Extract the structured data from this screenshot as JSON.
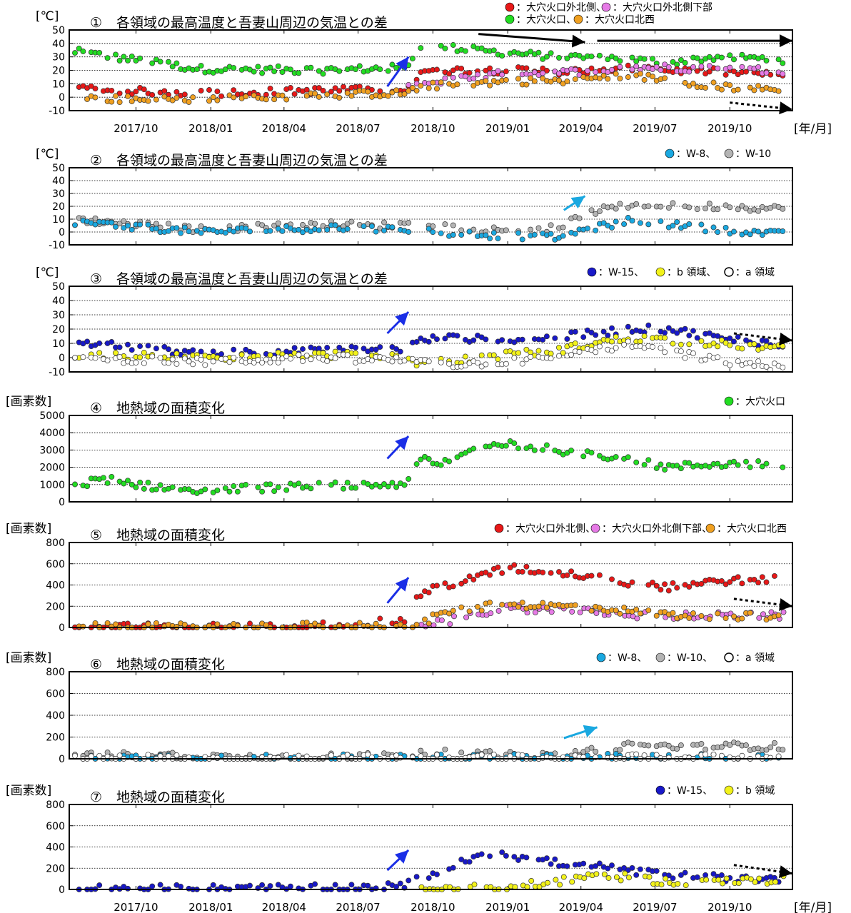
{
  "x_axis": {
    "month_labels": [
      "2017/10",
      "2018/01",
      "2018/04",
      "2018/07",
      "2018/10",
      "2019/01",
      "2019/04",
      "2019/07",
      "2019/10"
    ],
    "unit_label": "[年/月]",
    "range": [
      "2017-07-25",
      "2019-12-31"
    ]
  },
  "colors": {
    "red": "#e81818",
    "magenta": "#e67ae6",
    "green": "#22dd22",
    "orange": "#f0a020",
    "cyan": "#1aa8e0",
    "gray": "#b4b4b4",
    "blue": "#1818c8",
    "yellow": "#f2f21a",
    "white": "#ffffff",
    "arrow_black": "#000000",
    "arrow_blue": "#1a2ee6",
    "arrow_cyan": "#1aa8e0"
  },
  "chart_data": [
    {
      "type": "scatter",
      "panel": "①",
      "title": "各領域の最高温度と吾妻山周辺の気温との差",
      "ylabel": "[℃]",
      "ylim": [
        -10,
        50
      ],
      "yticks": [
        -10,
        0,
        10,
        20,
        30,
        40,
        50
      ],
      "grid": true,
      "legend": [
        {
          "marker": "red",
          "label": "：大穴火口外北側、"
        },
        {
          "marker": "magenta",
          "label": "：大穴火口外北側下部"
        },
        {
          "marker": "green",
          "label": "：大穴火口、"
        },
        {
          "marker": "orange",
          "label": "：大穴火口北西"
        }
      ],
      "series": [
        {
          "color": "green",
          "name": "大穴火口",
          "x": [
            "2017-08-01",
            "2018-01-01",
            "2018-06-01",
            "2018-09-10",
            "2018-10-01",
            "2018-11-01",
            "2019-01-15",
            "2019-03-15",
            "2019-05-01",
            "2019-06-15",
            "2019-08-01",
            "2019-10-01",
            "2019-12-20"
          ],
          "y": [
            34,
            21,
            20,
            22,
            38,
            37,
            33,
            30,
            30,
            28,
            26,
            30,
            28
          ]
        },
        {
          "color": "red",
          "name": "大穴火口外北側",
          "x": [
            "2017-08-01",
            "2018-01-01",
            "2018-06-01",
            "2018-09-10",
            "2018-10-01",
            "2018-11-01",
            "2019-01-15",
            "2019-03-15",
            "2019-05-01",
            "2019-06-15",
            "2019-08-01",
            "2019-10-01",
            "2019-12-20"
          ],
          "y": [
            6,
            3,
            5,
            6,
            18,
            20,
            20,
            19,
            20,
            21,
            20,
            19,
            16
          ]
        },
        {
          "color": "magenta",
          "name": "大穴火口外北側下部",
          "x": [
            "2018-09-10",
            "2018-10-01",
            "2018-11-01",
            "2019-01-15",
            "2019-03-15",
            "2019-05-01",
            "2019-06-15",
            "2019-08-01",
            "2019-10-01",
            "2019-12-20"
          ],
          "y": [
            6,
            10,
            12,
            18,
            18,
            20,
            22,
            22,
            21,
            20
          ]
        },
        {
          "color": "orange",
          "name": "大穴火口北西",
          "x": [
            "2017-08-01",
            "2018-01-01",
            "2018-06-01",
            "2018-09-10",
            "2018-10-01",
            "2018-11-01",
            "2019-01-15",
            "2019-03-15",
            "2019-05-01",
            "2019-06-15",
            "2019-08-01",
            "2019-10-01",
            "2019-12-20"
          ],
          "y": [
            -1,
            -2,
            2,
            3,
            8,
            9,
            12,
            12,
            14,
            16,
            13,
            8,
            5
          ]
        }
      ],
      "arrows": [
        {
          "color": "arrow_blue",
          "from": [
            "2018-08-20",
            8
          ],
          "to": [
            "2018-09-15",
            30
          ]
        },
        {
          "color": "arrow_black",
          "from": [
            "2018-12-10",
            47
          ],
          "to": [
            "2019-04-20",
            41
          ]
        },
        {
          "color": "arrow_black",
          "from": [
            "2019-05-05",
            42
          ],
          "to": [
            "2019-12-31",
            42
          ]
        },
        {
          "color": "arrow_black",
          "dashed": true,
          "from": [
            "2019-10-15",
            -4
          ],
          "to": [
            "2019-12-31",
            -9
          ]
        }
      ]
    },
    {
      "type": "scatter",
      "panel": "②",
      "title": "各領域の最高温度と吾妻山周辺の気温との差",
      "ylabel": "[℃]",
      "ylim": [
        -10,
        50
      ],
      "yticks": [
        -10,
        0,
        10,
        20,
        30,
        40,
        50
      ],
      "grid": true,
      "legend": [
        {
          "marker": "cyan",
          "label": "：W-8、"
        },
        {
          "marker": "gray",
          "label": "：W-10"
        }
      ],
      "series": [
        {
          "color": "gray",
          "name": "W-10",
          "x": [
            "2017-08-01",
            "2018-01-01",
            "2018-06-01",
            "2018-09-10",
            "2018-10-01",
            "2018-11-01",
            "2019-01-15",
            "2019-03-15",
            "2019-05-01",
            "2019-06-15",
            "2019-08-01",
            "2019-10-01",
            "2019-12-20"
          ],
          "y": [
            10,
            2,
            6,
            5,
            8,
            4,
            1,
            3,
            16,
            21,
            20,
            20,
            18
          ]
        },
        {
          "color": "cyan",
          "name": "W-8",
          "x": [
            "2017-08-01",
            "2018-01-01",
            "2018-06-01",
            "2018-09-10",
            "2018-10-01",
            "2018-11-01",
            "2019-01-15",
            "2019-03-15",
            "2019-05-01",
            "2019-06-15",
            "2019-08-01",
            "2019-10-01",
            "2019-12-20"
          ],
          "y": [
            8,
            0,
            3,
            2,
            2,
            -1,
            -3,
            -4,
            3,
            9,
            6,
            2,
            -2
          ]
        }
      ],
      "arrows": [
        {
          "color": "arrow_cyan",
          "from": [
            "2019-03-25",
            17
          ],
          "to": [
            "2019-04-20",
            28
          ]
        }
      ]
    },
    {
      "type": "scatter",
      "panel": "③",
      "title": "各領域の最高温度と吾妻山周辺の気温との差",
      "ylabel": "[℃]",
      "ylim": [
        -10,
        50
      ],
      "yticks": [
        -10,
        0,
        10,
        20,
        30,
        40,
        50
      ],
      "grid": true,
      "legend": [
        {
          "marker": "blue",
          "label": "：W-15、"
        },
        {
          "marker": "yellow",
          "label": "：b 領域、"
        },
        {
          "marker": "white",
          "label": "：a 領域"
        }
      ],
      "series": [
        {
          "color": "blue",
          "name": "W-15",
          "x": [
            "2017-08-01",
            "2018-01-01",
            "2018-06-01",
            "2018-09-10",
            "2018-10-01",
            "2018-11-01",
            "2019-01-15",
            "2019-03-15",
            "2019-05-01",
            "2019-06-15",
            "2019-08-01",
            "2019-10-01",
            "2019-12-20"
          ],
          "y": [
            11,
            3,
            5,
            6,
            12,
            14,
            12,
            14,
            17,
            20,
            20,
            14,
            9
          ]
        },
        {
          "color": "yellow",
          "name": "b 領域",
          "x": [
            "2017-08-01",
            "2018-01-01",
            "2018-06-01",
            "2018-09-10",
            "2018-10-01",
            "2018-11-01",
            "2019-01-15",
            "2019-03-15",
            "2019-05-01",
            "2019-06-15",
            "2019-08-01",
            "2019-10-01",
            "2019-12-20"
          ],
          "y": [
            2,
            0,
            2,
            1,
            -5,
            -3,
            2,
            5,
            10,
            14,
            12,
            10,
            6
          ]
        },
        {
          "color": "white",
          "name": "a 領域",
          "x": [
            "2017-08-01",
            "2018-01-01",
            "2018-06-01",
            "2018-09-10",
            "2018-10-01",
            "2018-11-01",
            "2019-01-15",
            "2019-03-15",
            "2019-05-01",
            "2019-06-15",
            "2019-08-01",
            "2019-10-01",
            "2019-12-20"
          ],
          "y": [
            0,
            -3,
            0,
            -2,
            -4,
            -5,
            -3,
            0,
            5,
            9,
            4,
            -2,
            -7
          ]
        }
      ],
      "arrows": [
        {
          "color": "arrow_blue",
          "from": [
            "2018-08-20",
            17
          ],
          "to": [
            "2018-09-15",
            32
          ]
        },
        {
          "color": "arrow_black",
          "dashed": true,
          "from": [
            "2019-10-20",
            17
          ],
          "to": [
            "2019-12-31",
            12
          ]
        }
      ]
    },
    {
      "type": "scatter",
      "panel": "④",
      "title": "地熱域の面積変化",
      "ylabel": "[画素数]",
      "ylim": [
        0,
        5000
      ],
      "yticks": [
        0,
        1000,
        2000,
        3000,
        4000,
        5000
      ],
      "grid": true,
      "legend": [
        {
          "marker": "green",
          "label": "：大穴火口"
        }
      ],
      "series": [
        {
          "color": "green",
          "name": "大穴火口",
          "x": [
            "2017-08-01",
            "2017-09-10",
            "2017-11-01",
            "2018-01-01",
            "2018-03-15",
            "2018-06-01",
            "2018-08-20",
            "2018-09-15",
            "2018-10-01",
            "2018-11-01",
            "2018-12-10",
            "2019-01-15",
            "2019-03-15",
            "2019-05-01",
            "2019-06-15",
            "2019-08-01",
            "2019-10-01",
            "2019-12-20"
          ],
          "y": [
            1000,
            1300,
            900,
            700,
            800,
            900,
            1000,
            1100,
            2600,
            2200,
            3200,
            3400,
            3000,
            2800,
            2400,
            2000,
            2200,
            2200
          ]
        }
      ],
      "arrows": [
        {
          "color": "arrow_blue",
          "from": [
            "2018-08-20",
            2500
          ],
          "to": [
            "2018-09-15",
            3800
          ]
        }
      ]
    },
    {
      "type": "scatter",
      "panel": "⑤",
      "title": "地熱域の面積変化",
      "ylabel": "[画素数]",
      "ylim": [
        0,
        800
      ],
      "yticks": [
        0,
        200,
        400,
        600,
        800
      ],
      "grid": true,
      "legend": [
        {
          "marker": "red",
          "label": "：大穴火口外北側、"
        },
        {
          "marker": "magenta",
          "label": "：大穴火口外北側下部、"
        },
        {
          "marker": "orange",
          "label": "：大穴火口北西"
        }
      ],
      "series": [
        {
          "color": "red",
          "name": "大穴火口外北側",
          "x": [
            "2017-08-01",
            "2018-01-01",
            "2018-06-01",
            "2018-09-10",
            "2018-10-01",
            "2018-11-01",
            "2019-01-15",
            "2019-03-15",
            "2019-05-01",
            "2019-06-15",
            "2019-08-01",
            "2019-10-01",
            "2019-12-20"
          ],
          "y": [
            5,
            5,
            20,
            60,
            330,
            400,
            560,
            520,
            480,
            420,
            380,
            440,
            450
          ]
        },
        {
          "color": "magenta",
          "name": "大穴火口外北側下部",
          "x": [
            "2018-10-01",
            "2018-11-01",
            "2019-01-15",
            "2019-03-15",
            "2019-05-01",
            "2019-06-15",
            "2019-08-01",
            "2019-10-01",
            "2019-12-20"
          ],
          "y": [
            20,
            60,
            180,
            170,
            150,
            120,
            110,
            110,
            110
          ]
        },
        {
          "color": "orange",
          "name": "大穴火口北西",
          "x": [
            "2017-08-01",
            "2018-01-01",
            "2018-06-01",
            "2018-09-10",
            "2018-10-01",
            "2018-11-01",
            "2019-01-15",
            "2019-03-15",
            "2019-05-01",
            "2019-06-15",
            "2019-08-01",
            "2019-10-01",
            "2019-12-20"
          ],
          "y": [
            5,
            5,
            15,
            20,
            40,
            150,
            220,
            200,
            190,
            150,
            120,
            110,
            100
          ]
        }
      ],
      "arrows": [
        {
          "color": "arrow_blue",
          "from": [
            "2018-08-20",
            230
          ],
          "to": [
            "2018-09-15",
            470
          ]
        },
        {
          "color": "arrow_black",
          "dashed": true,
          "from": [
            "2019-10-20",
            270
          ],
          "to": [
            "2019-12-31",
            200
          ]
        }
      ]
    },
    {
      "type": "scatter",
      "panel": "⑥",
      "title": "地熱域の面積変化",
      "ylabel": "[画素数]",
      "ylim": [
        0,
        800
      ],
      "yticks": [
        0,
        200,
        400,
        600,
        800
      ],
      "grid": true,
      "legend": [
        {
          "marker": "cyan",
          "label": "：W-8、"
        },
        {
          "marker": "gray",
          "label": "：W-10、"
        },
        {
          "marker": "white",
          "label": "：a 領域"
        }
      ],
      "series": [
        {
          "color": "gray",
          "name": "W-10",
          "x": [
            "2017-08-01",
            "2017-11-01",
            "2018-03-15",
            "2018-06-01",
            "2018-09-10",
            "2018-10-01",
            "2018-11-01",
            "2019-01-15",
            "2019-03-15",
            "2019-05-01",
            "2019-06-15",
            "2019-08-01",
            "2019-10-01",
            "2019-12-20"
          ],
          "y": [
            25,
            35,
            15,
            20,
            25,
            65,
            50,
            30,
            20,
            80,
            120,
            110,
            120,
            110
          ]
        },
        {
          "color": "cyan",
          "name": "W-8",
          "x": [
            "2017-08-01",
            "2018-06-01",
            "2019-01-15",
            "2019-06-15",
            "2019-12-20"
          ],
          "y": [
            5,
            5,
            10,
            15,
            10
          ]
        },
        {
          "color": "white",
          "name": "a 領域",
          "x": [
            "2017-08-01",
            "2018-06-01",
            "2019-01-15",
            "2019-06-15",
            "2019-12-20"
          ],
          "y": [
            5,
            5,
            5,
            10,
            8
          ]
        }
      ],
      "arrows": [
        {
          "color": "arrow_cyan",
          "from": [
            "2019-03-25",
            190
          ],
          "to": [
            "2019-05-05",
            290
          ]
        }
      ]
    },
    {
      "type": "scatter",
      "panel": "⑦",
      "title": "地熱域の面積変化",
      "ylabel": "[画素数]",
      "ylim": [
        0,
        800
      ],
      "yticks": [
        0,
        200,
        400,
        600,
        800
      ],
      "grid": true,
      "legend": [
        {
          "marker": "blue",
          "label": "：W-15、"
        },
        {
          "marker": "yellow",
          "label": "：b 領域"
        }
      ],
      "series": [
        {
          "color": "blue",
          "name": "W-15",
          "x": [
            "2017-08-01",
            "2018-01-01",
            "2018-06-01",
            "2018-09-10",
            "2018-10-01",
            "2018-11-01",
            "2018-12-10",
            "2019-01-15",
            "2019-03-15",
            "2019-05-01",
            "2019-06-15",
            "2019-08-01",
            "2019-10-01",
            "2019-12-20"
          ],
          "y": [
            10,
            10,
            15,
            30,
            120,
            180,
            330,
            320,
            250,
            220,
            170,
            140,
            110,
            100
          ]
        },
        {
          "color": "yellow",
          "name": "b 領域",
          "x": [
            "2018-10-01",
            "2019-01-15",
            "2019-03-15",
            "2019-05-01",
            "2019-06-15",
            "2019-08-01",
            "2019-10-01",
            "2019-12-20"
          ],
          "y": [
            5,
            20,
            70,
            140,
            110,
            70,
            70,
            90
          ]
        }
      ],
      "arrows": [
        {
          "color": "arrow_blue",
          "from": [
            "2018-08-20",
            180
          ],
          "to": [
            "2018-09-15",
            370
          ]
        },
        {
          "color": "arrow_black",
          "dashed": true,
          "from": [
            "2019-10-20",
            230
          ],
          "to": [
            "2019-12-31",
            150
          ]
        }
      ]
    }
  ]
}
